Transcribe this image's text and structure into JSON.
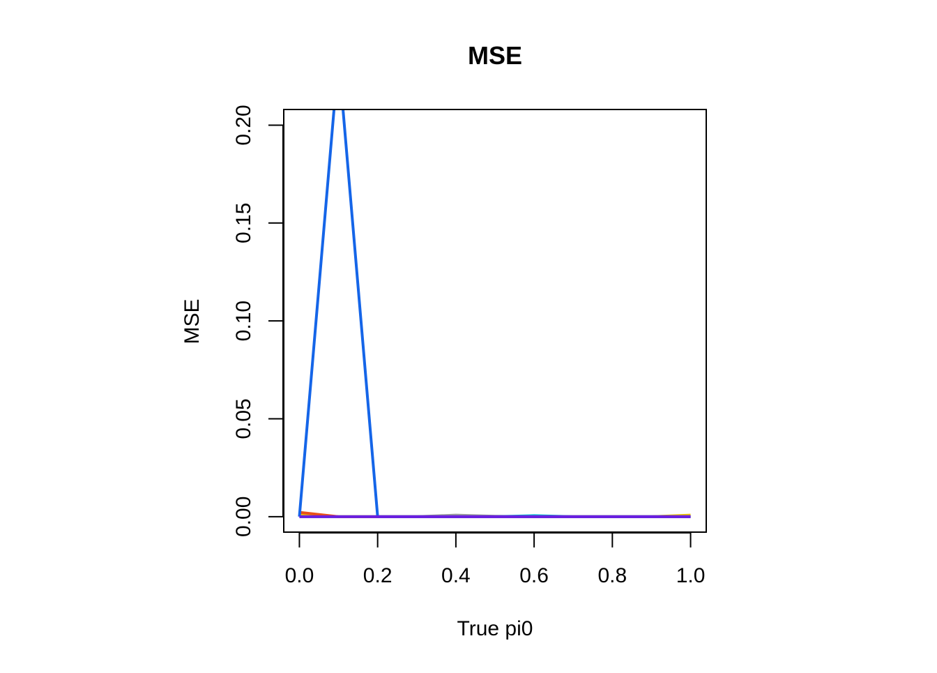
{
  "chart_data": {
    "type": "line",
    "title": "MSE",
    "xlabel": "True pi0",
    "ylabel": "MSE",
    "xlim": [
      -0.04,
      1.04
    ],
    "ylim": [
      -0.0079,
      0.208
    ],
    "x_ticks": [
      0.0,
      0.2,
      0.4,
      0.6,
      0.8,
      1.0
    ],
    "x_tick_labels": [
      "0.0",
      "0.2",
      "0.4",
      "0.6",
      "0.8",
      "1.0"
    ],
    "y_ticks": [
      0.0,
      0.05,
      0.1,
      0.15,
      0.2
    ],
    "y_tick_labels": [
      "0.00",
      "0.05",
      "0.10",
      "0.15",
      "0.20"
    ],
    "grid": false,
    "legend": "none",
    "x": [
      0.0,
      0.1,
      0.2,
      0.3,
      0.4,
      0.5,
      0.6,
      0.7,
      0.8,
      0.9,
      1.0
    ],
    "series": [
      {
        "color": "#9e9e9e",
        "values": [
          0.0012,
          0.0,
          0.0,
          0.0,
          0.0008,
          0.0002,
          0.0,
          0.0,
          0.0,
          0.0,
          0.0003
        ]
      },
      {
        "color": "#f0c000",
        "values": [
          0.0008,
          0.0,
          0.0,
          0.0,
          0.0,
          0.0,
          0.0,
          0.0,
          0.0,
          0.0,
          0.0008
        ]
      },
      {
        "color": "#00bcd4",
        "values": [
          0.0,
          0.0,
          0.0,
          0.0,
          0.0,
          0.0,
          0.0005,
          0.0,
          0.0,
          0.0,
          0.0
        ]
      },
      {
        "color": "#e8501a",
        "values": [
          0.0022,
          0.0,
          0.0,
          0.0,
          0.0,
          0.0,
          0.0,
          0.0,
          0.0,
          0.0,
          0.0
        ]
      },
      {
        "color": "#1565e8",
        "values": [
          0.0,
          0.235,
          0.0,
          0.0,
          0.0,
          0.0,
          0.0,
          0.0,
          0.0,
          0.0,
          0.0
        ]
      },
      {
        "color": "#6a1ee0",
        "values": [
          0.0,
          0.0,
          0.0,
          0.0,
          0.0,
          0.0,
          0.0,
          0.0,
          0.0,
          0.0,
          0.0
        ]
      }
    ]
  }
}
